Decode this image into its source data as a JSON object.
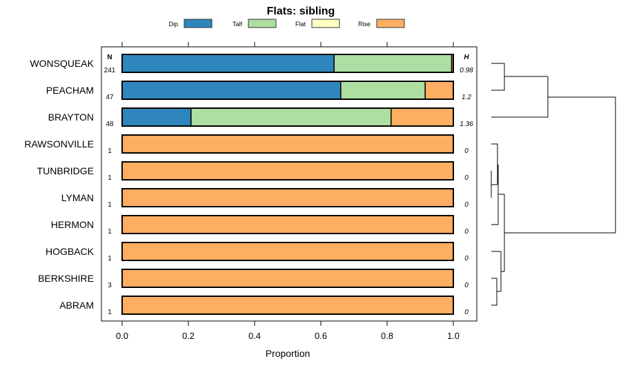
{
  "chart_data": {
    "type": "bar",
    "orientation": "horizontal-stacked",
    "title": "Flats: sibling",
    "xlabel": "Proportion",
    "xlim": [
      0,
      1
    ],
    "xticks": [
      "0.0",
      "0.2",
      "0.4",
      "0.6",
      "0.8",
      "1.0"
    ],
    "xtick_values": [
      0,
      0.2,
      0.4,
      0.6,
      0.8,
      1.0
    ],
    "legend_placement": "top",
    "legend": [
      {
        "name": "Dip",
        "color": "#2e86bc"
      },
      {
        "name": "Talf",
        "color": "#addfa3"
      },
      {
        "name": "Flat",
        "color": "#ffffc3"
      },
      {
        "name": "Rise",
        "color": "#fdae61"
      }
    ],
    "n_header": "N",
    "h_header": "H",
    "categories": [
      "WONSQUEAK",
      "PEACHAM",
      "BRAYTON",
      "RAWSONVILLE",
      "TUNBRIDGE",
      "LYMAN",
      "HERMON",
      "HOGBACK",
      "BERKSHIRE",
      "ABRAM"
    ],
    "n": [
      "241",
      "47",
      "48",
      "1",
      "1",
      "1",
      "1",
      "1",
      "3",
      "1"
    ],
    "h": [
      "0.98",
      "1.2",
      "1.36",
      "0",
      "0",
      "0",
      "0",
      "0",
      "0",
      "0"
    ],
    "series": [
      {
        "name": "Dip",
        "values": [
          0.64,
          0.66,
          0.208,
          0,
          0,
          0,
          0,
          0,
          0,
          0
        ]
      },
      {
        "name": "Talf",
        "values": [
          0.355,
          0.255,
          0.604,
          0,
          0,
          0,
          0,
          0,
          0,
          0
        ]
      },
      {
        "name": "Flat",
        "values": [
          0,
          0,
          0,
          0,
          0,
          0,
          0,
          0,
          0,
          0
        ]
      },
      {
        "name": "Rise",
        "values": [
          0.005,
          0.085,
          0.188,
          1,
          1,
          1,
          1,
          1,
          1,
          1
        ]
      }
    ]
  }
}
